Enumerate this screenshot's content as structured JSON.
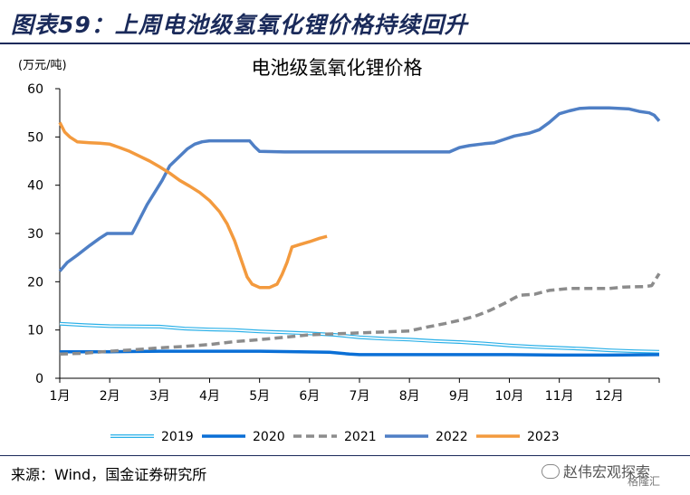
{
  "header": {
    "title": "图表59：上周电池级氢氧化锂价格持续回升"
  },
  "footer": {
    "source": "来源：Wind，国金证券研究所",
    "watermark": "赵伟宏观探索",
    "watermark_sub": "格隆汇"
  },
  "chart_data": {
    "type": "line",
    "title": "电池级氢氧化锂价格",
    "ylabel": "(万元/吨)",
    "xlabel": "",
    "ylim": [
      0,
      60
    ],
    "yticks": [
      0,
      10,
      20,
      30,
      40,
      50,
      60
    ],
    "xlim": [
      1,
      13
    ],
    "categories": [
      "1月",
      "2月",
      "3月",
      "4月",
      "5月",
      "6月",
      "7月",
      "8月",
      "9月",
      "10月",
      "11月",
      "12月"
    ],
    "grid": false,
    "legend_position": "bottom",
    "series": [
      {
        "name": "2019",
        "color": "#2ab0e8",
        "style": "double",
        "points": [
          [
            1.0,
            11.3
          ],
          [
            1.5,
            11.0
          ],
          [
            2.0,
            10.8
          ],
          [
            3.0,
            10.7
          ],
          [
            3.5,
            10.3
          ],
          [
            4.0,
            10.1
          ],
          [
            4.5,
            10.0
          ],
          [
            5.0,
            9.7
          ],
          [
            5.5,
            9.5
          ],
          [
            6.0,
            9.3
          ],
          [
            6.5,
            9.0
          ],
          [
            7.0,
            8.5
          ],
          [
            7.5,
            8.2
          ],
          [
            8.0,
            8.0
          ],
          [
            8.5,
            7.7
          ],
          [
            9.0,
            7.5
          ],
          [
            9.5,
            7.2
          ],
          [
            10.0,
            6.8
          ],
          [
            10.5,
            6.5
          ],
          [
            11.0,
            6.3
          ],
          [
            11.5,
            6.1
          ],
          [
            12.0,
            5.8
          ],
          [
            12.5,
            5.6
          ],
          [
            13.0,
            5.5
          ]
        ]
      },
      {
        "name": "2020",
        "color": "#0a6fd6",
        "style": "solid",
        "points": [
          [
            1.0,
            5.5
          ],
          [
            2.0,
            5.5
          ],
          [
            3.0,
            5.6
          ],
          [
            4.0,
            5.6
          ],
          [
            5.0,
            5.6
          ],
          [
            5.8,
            5.5
          ],
          [
            6.4,
            5.4
          ],
          [
            6.8,
            5.0
          ],
          [
            7.0,
            4.9
          ],
          [
            8.0,
            4.9
          ],
          [
            9.0,
            4.9
          ],
          [
            10.0,
            4.9
          ],
          [
            11.0,
            4.8
          ],
          [
            12.0,
            4.8
          ],
          [
            13.0,
            4.9
          ]
        ]
      },
      {
        "name": "2021",
        "color": "#8c8c8c",
        "style": "dashed",
        "points": [
          [
            1.0,
            5.0
          ],
          [
            1.5,
            5.2
          ],
          [
            2.0,
            5.6
          ],
          [
            2.5,
            5.9
          ],
          [
            3.0,
            6.3
          ],
          [
            3.5,
            6.6
          ],
          [
            4.0,
            7.0
          ],
          [
            4.5,
            7.6
          ],
          [
            5.0,
            8.0
          ],
          [
            5.5,
            8.5
          ],
          [
            6.0,
            9.0
          ],
          [
            6.5,
            9.2
          ],
          [
            7.0,
            9.4
          ],
          [
            7.5,
            9.6
          ],
          [
            8.0,
            9.8
          ],
          [
            8.3,
            10.5
          ],
          [
            8.7,
            11.3
          ],
          [
            9.0,
            12.0
          ],
          [
            9.3,
            12.8
          ],
          [
            9.6,
            14.0
          ],
          [
            9.9,
            15.5
          ],
          [
            10.2,
            17.2
          ],
          [
            10.5,
            17.4
          ],
          [
            10.8,
            18.2
          ],
          [
            11.2,
            18.6
          ],
          [
            11.6,
            18.6
          ],
          [
            12.0,
            18.6
          ],
          [
            12.3,
            18.9
          ],
          [
            12.7,
            19.0
          ],
          [
            12.85,
            19.2
          ],
          [
            13.0,
            21.7
          ]
        ]
      },
      {
        "name": "2022",
        "color": "#4f7fc5",
        "style": "solid",
        "points": [
          [
            1.0,
            22.2
          ],
          [
            1.15,
            24.0
          ],
          [
            1.35,
            25.5
          ],
          [
            1.6,
            27.5
          ],
          [
            1.8,
            29.0
          ],
          [
            1.95,
            30.0
          ],
          [
            2.3,
            30.0
          ],
          [
            2.45,
            30.0
          ],
          [
            2.6,
            33.0
          ],
          [
            2.75,
            36.0
          ],
          [
            2.9,
            38.5
          ],
          [
            3.05,
            41.0
          ],
          [
            3.2,
            44.0
          ],
          [
            3.4,
            46.0
          ],
          [
            3.55,
            47.5
          ],
          [
            3.7,
            48.5
          ],
          [
            3.85,
            49.0
          ],
          [
            4.0,
            49.2
          ],
          [
            4.5,
            49.2
          ],
          [
            4.8,
            49.2
          ],
          [
            4.9,
            48.0
          ],
          [
            5.0,
            47.0
          ],
          [
            5.5,
            46.9
          ],
          [
            6.0,
            46.9
          ],
          [
            7.0,
            46.9
          ],
          [
            8.0,
            46.9
          ],
          [
            8.8,
            46.9
          ],
          [
            9.0,
            47.8
          ],
          [
            9.2,
            48.2
          ],
          [
            9.5,
            48.6
          ],
          [
            9.7,
            48.8
          ],
          [
            9.9,
            49.5
          ],
          [
            10.1,
            50.2
          ],
          [
            10.4,
            50.8
          ],
          [
            10.6,
            51.5
          ],
          [
            10.8,
            53.0
          ],
          [
            11.0,
            54.8
          ],
          [
            11.2,
            55.4
          ],
          [
            11.4,
            55.9
          ],
          [
            11.6,
            56.0
          ],
          [
            12.0,
            56.0
          ],
          [
            12.4,
            55.8
          ],
          [
            12.6,
            55.3
          ],
          [
            12.8,
            55.0
          ],
          [
            12.9,
            54.5
          ],
          [
            13.0,
            53.3
          ]
        ]
      },
      {
        "name": "2023",
        "color": "#f39a3e",
        "style": "solid",
        "points": [
          [
            1.0,
            53.0
          ],
          [
            1.1,
            51.0
          ],
          [
            1.2,
            50.0
          ],
          [
            1.35,
            49.0
          ],
          [
            1.6,
            48.8
          ],
          [
            1.8,
            48.7
          ],
          [
            2.0,
            48.5
          ],
          [
            2.2,
            47.8
          ],
          [
            2.4,
            47.0
          ],
          [
            2.6,
            46.0
          ],
          [
            2.8,
            45.0
          ],
          [
            3.0,
            43.8
          ],
          [
            3.2,
            42.5
          ],
          [
            3.4,
            41.0
          ],
          [
            3.6,
            39.8
          ],
          [
            3.8,
            38.5
          ],
          [
            4.0,
            36.8
          ],
          [
            4.2,
            34.5
          ],
          [
            4.35,
            32.0
          ],
          [
            4.5,
            28.5
          ],
          [
            4.6,
            25.5
          ],
          [
            4.75,
            21.0
          ],
          [
            4.85,
            19.5
          ],
          [
            5.0,
            18.8
          ],
          [
            5.2,
            18.8
          ],
          [
            5.35,
            19.5
          ],
          [
            5.45,
            21.5
          ],
          [
            5.55,
            24.0
          ],
          [
            5.65,
            27.2
          ],
          [
            5.8,
            27.7
          ],
          [
            6.0,
            28.3
          ],
          [
            6.2,
            29.0
          ],
          [
            6.35,
            29.4
          ]
        ]
      }
    ]
  }
}
